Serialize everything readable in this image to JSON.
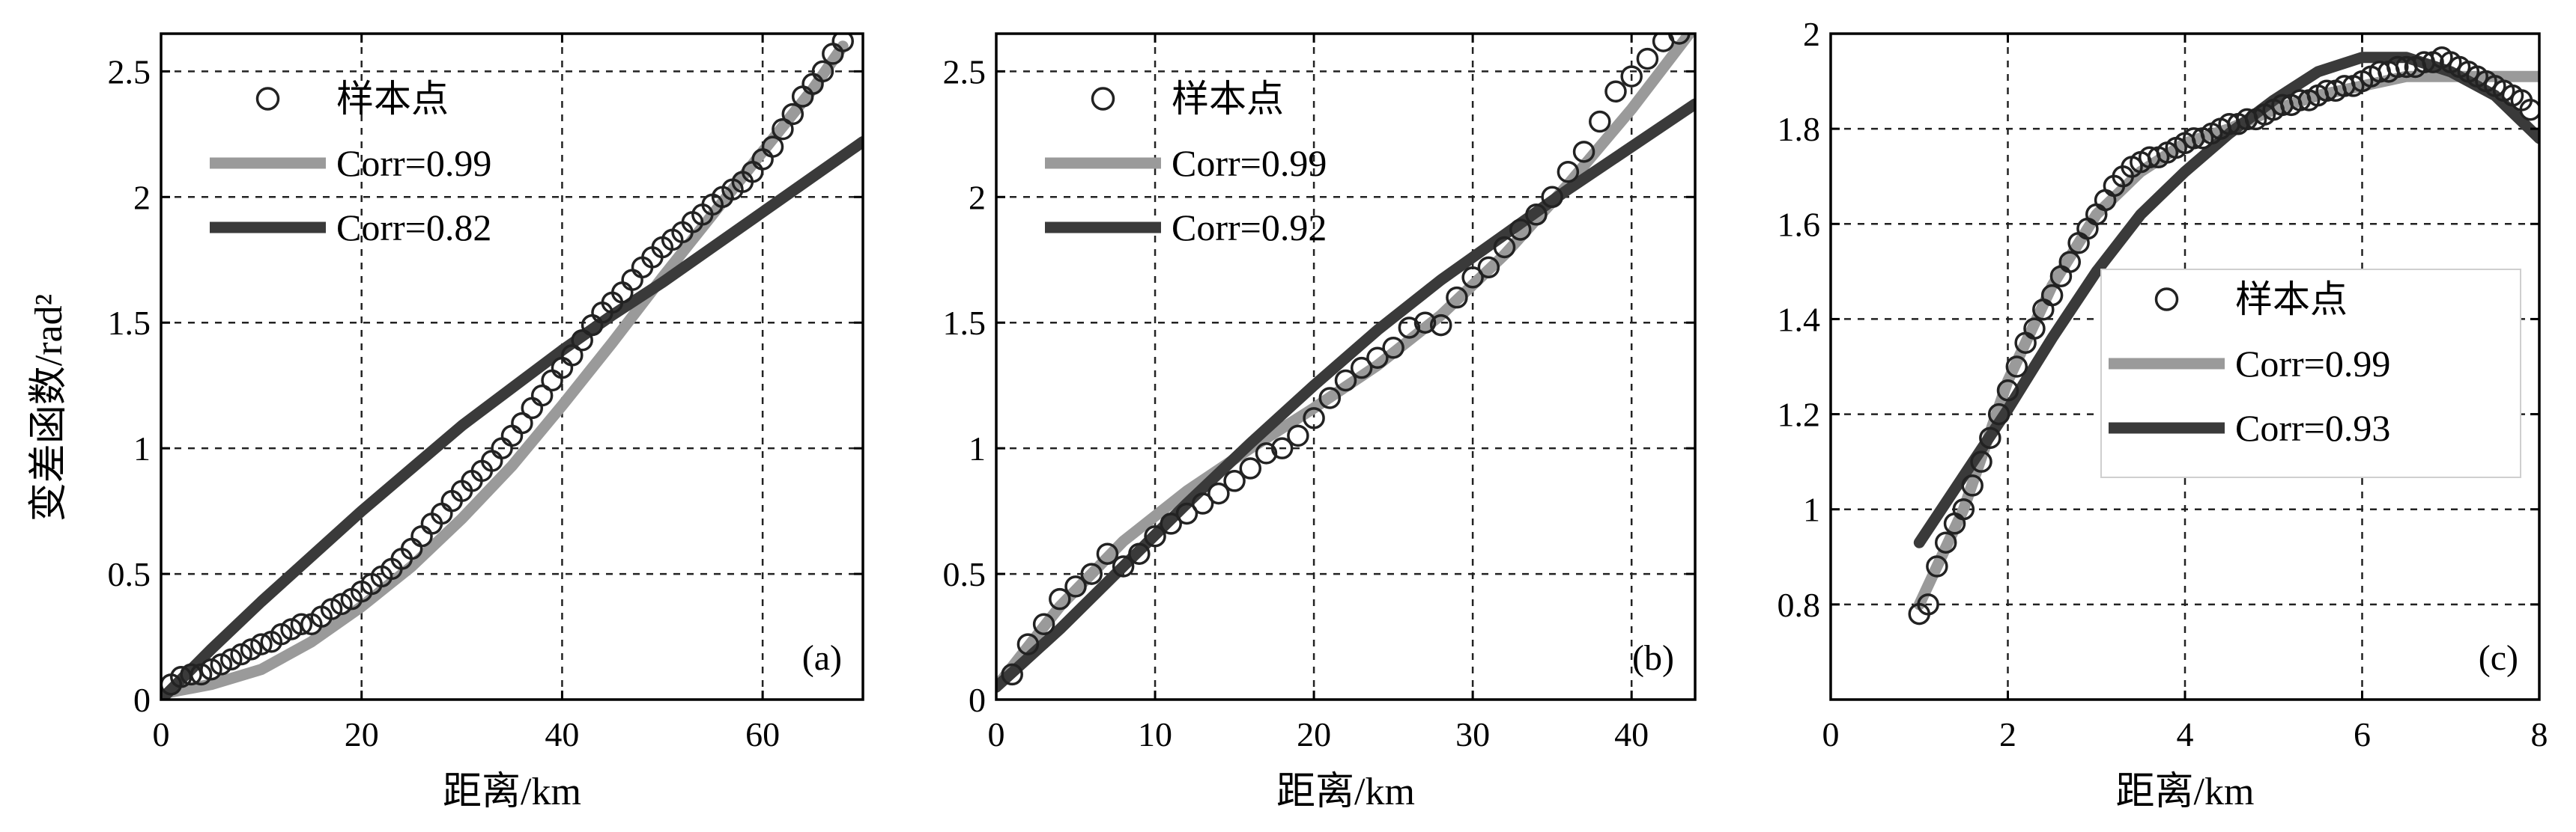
{
  "figure": {
    "ylabel": "变差函数/rad²"
  },
  "chart_data": [
    {
      "type": "line",
      "panel_label": "(a)",
      "xlabel": "距离/km",
      "xlim": [
        0,
        70
      ],
      "ylim": [
        0,
        2.65
      ],
      "xticks": [
        0,
        20,
        40,
        60
      ],
      "yticks": [
        0,
        0.5,
        1,
        1.5,
        2,
        2.5
      ],
      "ytick_labels": [
        "0",
        "0.5",
        "1",
        "1.5",
        "2",
        "2.5"
      ],
      "grid": true,
      "legend": {
        "placement": "top-left",
        "entries": [
          "样本点",
          "Corr=0.99",
          "Corr=0.82"
        ]
      },
      "series": [
        {
          "name": "样本点",
          "kind": "markers",
          "color": "#ffffff",
          "x": [
            1,
            2,
            3,
            4,
            5,
            6,
            7,
            8,
            9,
            10,
            11,
            12,
            13,
            14,
            15,
            16,
            17,
            18,
            19,
            20,
            21,
            22,
            23,
            24,
            25,
            26,
            27,
            28,
            29,
            30,
            31,
            32,
            33,
            34,
            35,
            36,
            37,
            38,
            39,
            40,
            41,
            42,
            43,
            44,
            45,
            46,
            47,
            48,
            49,
            50,
            51,
            52,
            53,
            54,
            55,
            56,
            57,
            58,
            59,
            60,
            61,
            62,
            63,
            64,
            65,
            66,
            67,
            68
          ],
          "y": [
            0.06,
            0.09,
            0.1,
            0.1,
            0.12,
            0.14,
            0.16,
            0.18,
            0.2,
            0.22,
            0.23,
            0.26,
            0.28,
            0.3,
            0.3,
            0.33,
            0.36,
            0.38,
            0.4,
            0.43,
            0.46,
            0.49,
            0.52,
            0.56,
            0.6,
            0.65,
            0.7,
            0.74,
            0.79,
            0.83,
            0.87,
            0.91,
            0.95,
            1.0,
            1.05,
            1.1,
            1.16,
            1.21,
            1.27,
            1.32,
            1.37,
            1.43,
            1.49,
            1.54,
            1.58,
            1.62,
            1.67,
            1.72,
            1.76,
            1.8,
            1.83,
            1.86,
            1.9,
            1.93,
            1.97,
            2.0,
            2.03,
            2.06,
            2.1,
            2.15,
            2.2,
            2.27,
            2.33,
            2.4,
            2.45,
            2.5,
            2.57,
            2.62
          ]
        },
        {
          "name": "Corr=0.99",
          "kind": "line",
          "color": "#9a9a9a",
          "x": [
            1,
            5,
            10,
            15,
            20,
            25,
            30,
            35,
            40,
            45,
            50,
            55,
            60,
            65,
            68
          ],
          "y": [
            0.03,
            0.06,
            0.12,
            0.23,
            0.37,
            0.53,
            0.72,
            0.93,
            1.17,
            1.42,
            1.68,
            1.93,
            2.18,
            2.43,
            2.6
          ]
        },
        {
          "name": "Corr=0.82",
          "kind": "line",
          "color": "#3a3a3a",
          "x": [
            0,
            5,
            10,
            15,
            20,
            25,
            30,
            35,
            40,
            45,
            50,
            55,
            60,
            65,
            70
          ],
          "y": [
            0.0,
            0.2,
            0.39,
            0.57,
            0.75,
            0.92,
            1.09,
            1.24,
            1.39,
            1.53,
            1.66,
            1.8,
            1.94,
            2.08,
            2.22
          ]
        }
      ]
    },
    {
      "type": "line",
      "panel_label": "(b)",
      "xlabel": "距离/km",
      "xlim": [
        0,
        44
      ],
      "ylim": [
        0,
        2.65
      ],
      "xticks": [
        0,
        10,
        20,
        30,
        40
      ],
      "yticks": [
        0,
        0.5,
        1,
        1.5,
        2,
        2.5
      ],
      "ytick_labels": [
        "0",
        "0.5",
        "1",
        "1.5",
        "2",
        "2.5"
      ],
      "grid": true,
      "legend": {
        "placement": "top-left",
        "entries": [
          "样本点",
          "Corr=0.99",
          "Corr=0.92"
        ]
      },
      "series": [
        {
          "name": "样本点",
          "kind": "markers",
          "color": "#ffffff",
          "x": [
            1,
            2,
            3,
            4,
            5,
            6,
            7,
            8,
            9,
            10,
            11,
            12,
            13,
            14,
            15,
            16,
            17,
            18,
            19,
            20,
            21,
            22,
            23,
            24,
            25,
            26,
            27,
            28,
            29,
            30,
            31,
            32,
            33,
            34,
            35,
            36,
            37,
            38,
            39,
            40,
            41,
            42,
            43
          ],
          "y": [
            0.1,
            0.22,
            0.3,
            0.4,
            0.45,
            0.5,
            0.58,
            0.53,
            0.58,
            0.65,
            0.7,
            0.74,
            0.78,
            0.82,
            0.87,
            0.92,
            0.98,
            1.0,
            1.05,
            1.12,
            1.2,
            1.27,
            1.32,
            1.36,
            1.4,
            1.48,
            1.5,
            1.49,
            1.6,
            1.68,
            1.72,
            1.8,
            1.87,
            1.93,
            2.0,
            2.1,
            2.18,
            2.3,
            2.42,
            2.48,
            2.55,
            2.62,
            2.65
          ]
        },
        {
          "name": "Corr=0.99",
          "kind": "line",
          "color": "#9a9a9a",
          "x": [
            0,
            4,
            8,
            12,
            16,
            20,
            24,
            28,
            32,
            36,
            40,
            44
          ],
          "y": [
            0.05,
            0.37,
            0.63,
            0.83,
            1.0,
            1.16,
            1.33,
            1.53,
            1.77,
            2.05,
            2.35,
            2.68
          ]
        },
        {
          "name": "Corr=0.92",
          "kind": "line",
          "color": "#3a3a3a",
          "x": [
            0,
            4,
            8,
            12,
            16,
            20,
            24,
            28,
            32,
            36,
            40,
            44
          ],
          "y": [
            0.05,
            0.28,
            0.53,
            0.78,
            1.02,
            1.25,
            1.47,
            1.67,
            1.85,
            2.03,
            2.2,
            2.37
          ]
        }
      ]
    },
    {
      "type": "line",
      "panel_label": "(c)",
      "xlabel": "距离/km",
      "xlim": [
        0,
        8
      ],
      "ylim": [
        0.6,
        2.0
      ],
      "xticks": [
        0,
        2,
        4,
        6,
        8
      ],
      "yticks": [
        0.8,
        1.0,
        1.2,
        1.4,
        1.6,
        1.8,
        2.0
      ],
      "ytick_labels": [
        "0.8",
        "1",
        "1.2",
        "1.4",
        "1.6",
        "1.8",
        "2"
      ],
      "grid": true,
      "legend": {
        "placement": "center-right",
        "entries": [
          "样本点",
          "Corr=0.99",
          "Corr=0.93"
        ]
      },
      "series": [
        {
          "name": "样本点",
          "kind": "markers",
          "color": "#ffffff",
          "x": [
            1.0,
            1.1,
            1.2,
            1.3,
            1.4,
            1.5,
            1.6,
            1.7,
            1.8,
            1.9,
            2.0,
            2.1,
            2.2,
            2.3,
            2.4,
            2.5,
            2.6,
            2.7,
            2.8,
            2.9,
            3.0,
            3.1,
            3.2,
            3.3,
            3.4,
            3.5,
            3.6,
            3.7,
            3.8,
            3.9,
            4.0,
            4.1,
            4.2,
            4.3,
            4.4,
            4.5,
            4.6,
            4.7,
            4.8,
            4.9,
            5.0,
            5.1,
            5.2,
            5.3,
            5.4,
            5.5,
            5.6,
            5.7,
            5.8,
            5.9,
            6.0,
            6.1,
            6.2,
            6.3,
            6.4,
            6.5,
            6.6,
            6.7,
            6.8,
            6.9,
            7.0,
            7.1,
            7.2,
            7.3,
            7.4,
            7.5,
            7.6,
            7.7,
            7.8,
            7.9
          ],
          "y": [
            0.78,
            0.8,
            0.88,
            0.93,
            0.97,
            1.0,
            1.05,
            1.1,
            1.15,
            1.2,
            1.25,
            1.3,
            1.35,
            1.38,
            1.42,
            1.45,
            1.49,
            1.52,
            1.56,
            1.59,
            1.62,
            1.65,
            1.68,
            1.7,
            1.72,
            1.73,
            1.74,
            1.74,
            1.75,
            1.76,
            1.77,
            1.78,
            1.78,
            1.79,
            1.8,
            1.81,
            1.81,
            1.82,
            1.82,
            1.83,
            1.84,
            1.85,
            1.85,
            1.86,
            1.86,
            1.87,
            1.88,
            1.88,
            1.89,
            1.89,
            1.9,
            1.91,
            1.92,
            1.92,
            1.93,
            1.93,
            1.93,
            1.94,
            1.94,
            1.95,
            1.94,
            1.93,
            1.92,
            1.91,
            1.9,
            1.89,
            1.88,
            1.87,
            1.86,
            1.84
          ]
        },
        {
          "name": "Corr=0.99",
          "kind": "line",
          "color": "#9a9a9a",
          "x": [
            1.0,
            1.5,
            2.0,
            2.5,
            3.0,
            3.5,
            4.0,
            4.5,
            5.0,
            5.5,
            6.0,
            6.5,
            7.0,
            7.5,
            8.0
          ],
          "y": [
            0.8,
            1.0,
            1.27,
            1.47,
            1.62,
            1.71,
            1.77,
            1.8,
            1.84,
            1.87,
            1.89,
            1.91,
            1.91,
            1.91,
            1.91
          ]
        },
        {
          "name": "Corr=0.93",
          "kind": "line",
          "color": "#3a3a3a",
          "x": [
            1.0,
            1.5,
            2.0,
            2.5,
            3.0,
            3.5,
            4.0,
            4.5,
            5.0,
            5.5,
            6.0,
            6.5,
            7.0,
            7.5,
            8.0
          ],
          "y": [
            0.93,
            1.07,
            1.21,
            1.36,
            1.5,
            1.62,
            1.71,
            1.79,
            1.86,
            1.92,
            1.95,
            1.95,
            1.92,
            1.87,
            1.78
          ]
        }
      ]
    }
  ]
}
